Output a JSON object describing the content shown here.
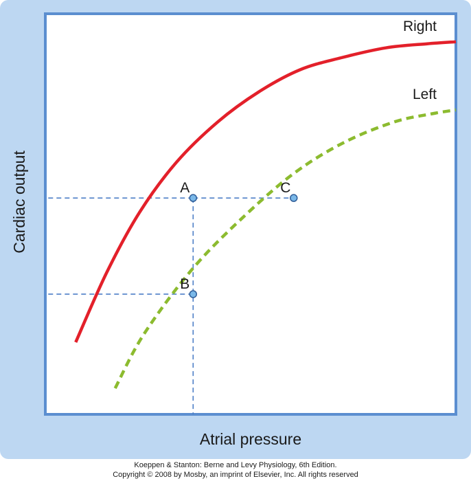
{
  "chart_data": {
    "type": "line",
    "xlabel": "Atrial pressure",
    "ylabel": "Cardiac output",
    "grid": false,
    "series": [
      {
        "name": "Right",
        "style": "solid",
        "color": "#e3202a",
        "x": [
          0.74,
          1.5,
          2.3,
          3.2,
          4.2,
          5.2,
          6.2,
          7.2,
          8.3,
          9.3,
          10.0
        ],
        "y": [
          1.8,
          3.55,
          5.05,
          6.3,
          7.3,
          8.05,
          8.6,
          8.9,
          9.15,
          9.25,
          9.3
        ]
      },
      {
        "name": "Left",
        "style": "dashed",
        "color": "#8cbb2f",
        "x": [
          1.7,
          2.4,
          3.6,
          4.9,
          6.1,
          7.3,
          8.5,
          9.4,
          10.0
        ],
        "y": [
          0.65,
          2.0,
          3.65,
          5.0,
          6.05,
          6.8,
          7.3,
          7.5,
          7.6
        ]
      }
    ],
    "points": [
      {
        "label": "A",
        "x": 3.6,
        "y": 5.4
      },
      {
        "label": "B",
        "x": 3.6,
        "y": 3.0
      },
      {
        "label": "C",
        "x": 6.05,
        "y": 5.4
      }
    ],
    "reference_lines": [
      {
        "from_point": "A",
        "to": "y-axis"
      },
      {
        "from_point": "A",
        "to": "x-axis"
      },
      {
        "from_point": "B",
        "to": "y-axis"
      },
      {
        "from_point": "A",
        "to_point": "C"
      }
    ],
    "xlim": [
      0,
      10
    ],
    "ylim": [
      0,
      10
    ]
  },
  "colors": {
    "background": "#bdd7f2",
    "plot_bg": "#ffffff",
    "axis": "#5b8ed0",
    "reference": "#4d7fc7",
    "marker_fill": "#7ab8e8",
    "marker_stroke": "#2f5d98"
  },
  "footer": {
    "line1": "Koeppen & Stanton: Berne and Levy Physiology, 6th Edition.",
    "line2": "Copyright © 2008 by Mosby, an imprint of Elsevier, Inc. All rights reserved"
  }
}
